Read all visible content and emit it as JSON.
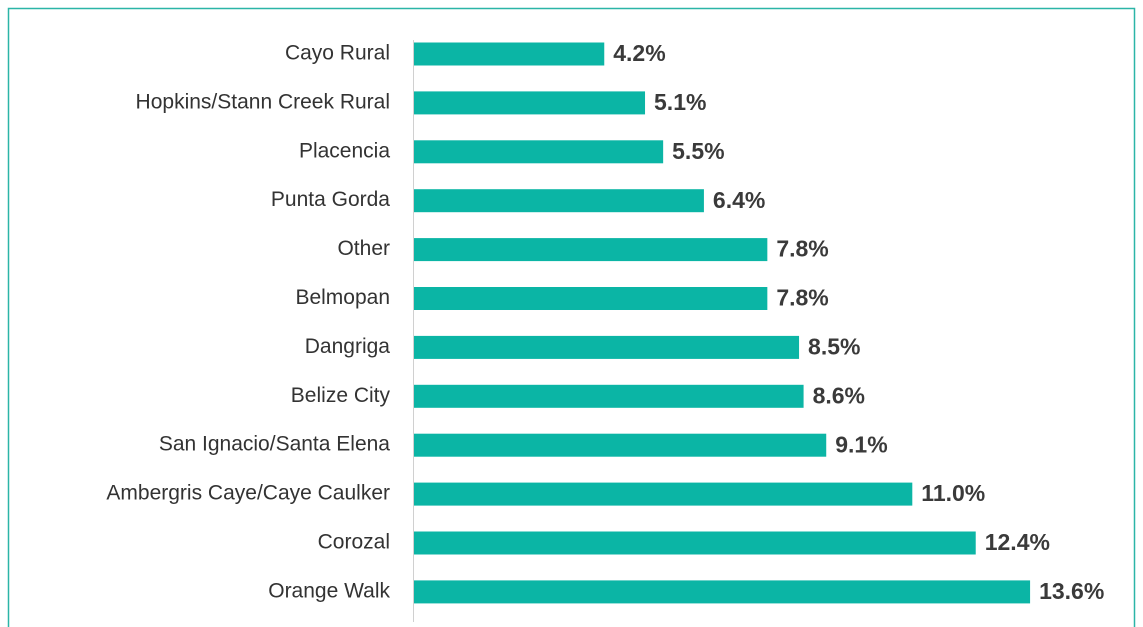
{
  "chart_data": {
    "type": "bar",
    "orientation": "horizontal",
    "color": "#0bb5a5",
    "categories": [
      "Cayo Rural",
      "Hopkins/Stann Creek Rural",
      "Placencia",
      "Punta Gorda",
      "Other",
      "Belmopan",
      "Dangriga",
      "Belize City",
      "San Ignacio/Santa Elena",
      "Ambergris Caye/Caye Caulker",
      "Corozal",
      "Orange Walk"
    ],
    "values": [
      4.2,
      5.1,
      5.5,
      6.4,
      7.8,
      7.8,
      8.5,
      8.6,
      9.1,
      11.0,
      12.4,
      13.6
    ],
    "value_labels": [
      "4.2%",
      "5.1%",
      "5.5%",
      "6.4%",
      "7.8%",
      "7.8%",
      "8.5%",
      "8.6%",
      "9.1%",
      "11.0%",
      "12.4%",
      "13.6%"
    ]
  }
}
